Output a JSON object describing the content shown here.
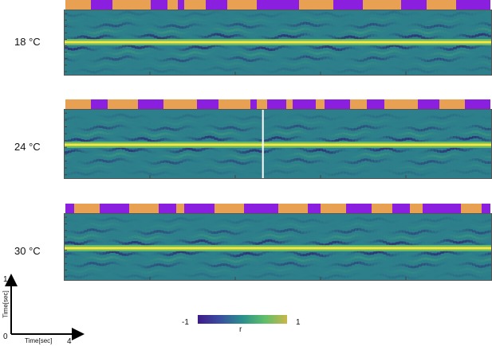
{
  "chart_data": {
    "type": "heatmap",
    "colormap": {
      "low": "#3f1a8a",
      "mid": "#2a8f8c",
      "high": "#f5e640"
    },
    "state_colors": {
      "a": "#e8a052",
      "b": "#8a1fe0"
    },
    "colorbar": {
      "min_label": "-1",
      "max_label": "1",
      "variable_label": "r",
      "range": [
        -1,
        1
      ]
    },
    "scale_bar": {
      "y_label": "Time[sec]",
      "y_value": "1",
      "x_label": "Time[sec]",
      "x_value": "4",
      "origin_label": "0"
    },
    "panels": [
      {
        "label": "18 °C",
        "states": [
          [
            "a",
            0.0,
            0.06
          ],
          [
            "b",
            0.06,
            0.11
          ],
          [
            "a",
            0.11,
            0.2
          ],
          [
            "b",
            0.2,
            0.24
          ],
          [
            "a",
            0.24,
            0.265
          ],
          [
            "b",
            0.265,
            0.28
          ],
          [
            "a",
            0.28,
            0.33
          ],
          [
            "b",
            0.33,
            0.38
          ],
          [
            "a",
            0.38,
            0.45
          ],
          [
            "b",
            0.45,
            0.55
          ],
          [
            "a",
            0.55,
            0.63
          ],
          [
            "b",
            0.63,
            0.7
          ],
          [
            "a",
            0.7,
            0.79
          ],
          [
            "b",
            0.79,
            0.85
          ],
          [
            "a",
            0.85,
            0.92
          ],
          [
            "b",
            0.92,
            1.0
          ]
        ]
      },
      {
        "label": "24 °C",
        "states": [
          [
            "a",
            0.0,
            0.06
          ],
          [
            "b",
            0.06,
            0.1
          ],
          [
            "a",
            0.1,
            0.17
          ],
          [
            "b",
            0.17,
            0.23
          ],
          [
            "a",
            0.23,
            0.31
          ],
          [
            "b",
            0.31,
            0.36
          ],
          [
            "a",
            0.36,
            0.435
          ],
          [
            "b",
            0.435,
            0.45
          ],
          [
            "a",
            0.45,
            0.475
          ],
          [
            "b",
            0.475,
            0.52
          ],
          [
            "a",
            0.52,
            0.535
          ],
          [
            "b",
            0.535,
            0.59
          ],
          [
            "a",
            0.59,
            0.61
          ],
          [
            "b",
            0.61,
            0.67
          ],
          [
            "a",
            0.67,
            0.71
          ],
          [
            "b",
            0.71,
            0.75
          ],
          [
            "a",
            0.75,
            0.83
          ],
          [
            "b",
            0.83,
            0.88
          ],
          [
            "a",
            0.88,
            0.94
          ],
          [
            "b",
            0.94,
            1.0
          ]
        ]
      },
      {
        "label": "30 °C",
        "states": [
          [
            "b",
            0.0,
            0.02
          ],
          [
            "a",
            0.02,
            0.08
          ],
          [
            "b",
            0.08,
            0.15
          ],
          [
            "a",
            0.15,
            0.22
          ],
          [
            "b",
            0.22,
            0.26
          ],
          [
            "a",
            0.26,
            0.28
          ],
          [
            "b",
            0.28,
            0.35
          ],
          [
            "a",
            0.35,
            0.42
          ],
          [
            "b",
            0.42,
            0.5
          ],
          [
            "a",
            0.5,
            0.57
          ],
          [
            "b",
            0.57,
            0.6
          ],
          [
            "a",
            0.6,
            0.66
          ],
          [
            "b",
            0.66,
            0.72
          ],
          [
            "a",
            0.72,
            0.77
          ],
          [
            "b",
            0.77,
            0.81
          ],
          [
            "a",
            0.81,
            0.84
          ],
          [
            "b",
            0.84,
            0.93
          ],
          [
            "a",
            0.93,
            0.98
          ],
          [
            "b",
            0.98,
            1.0
          ]
        ]
      }
    ]
  }
}
